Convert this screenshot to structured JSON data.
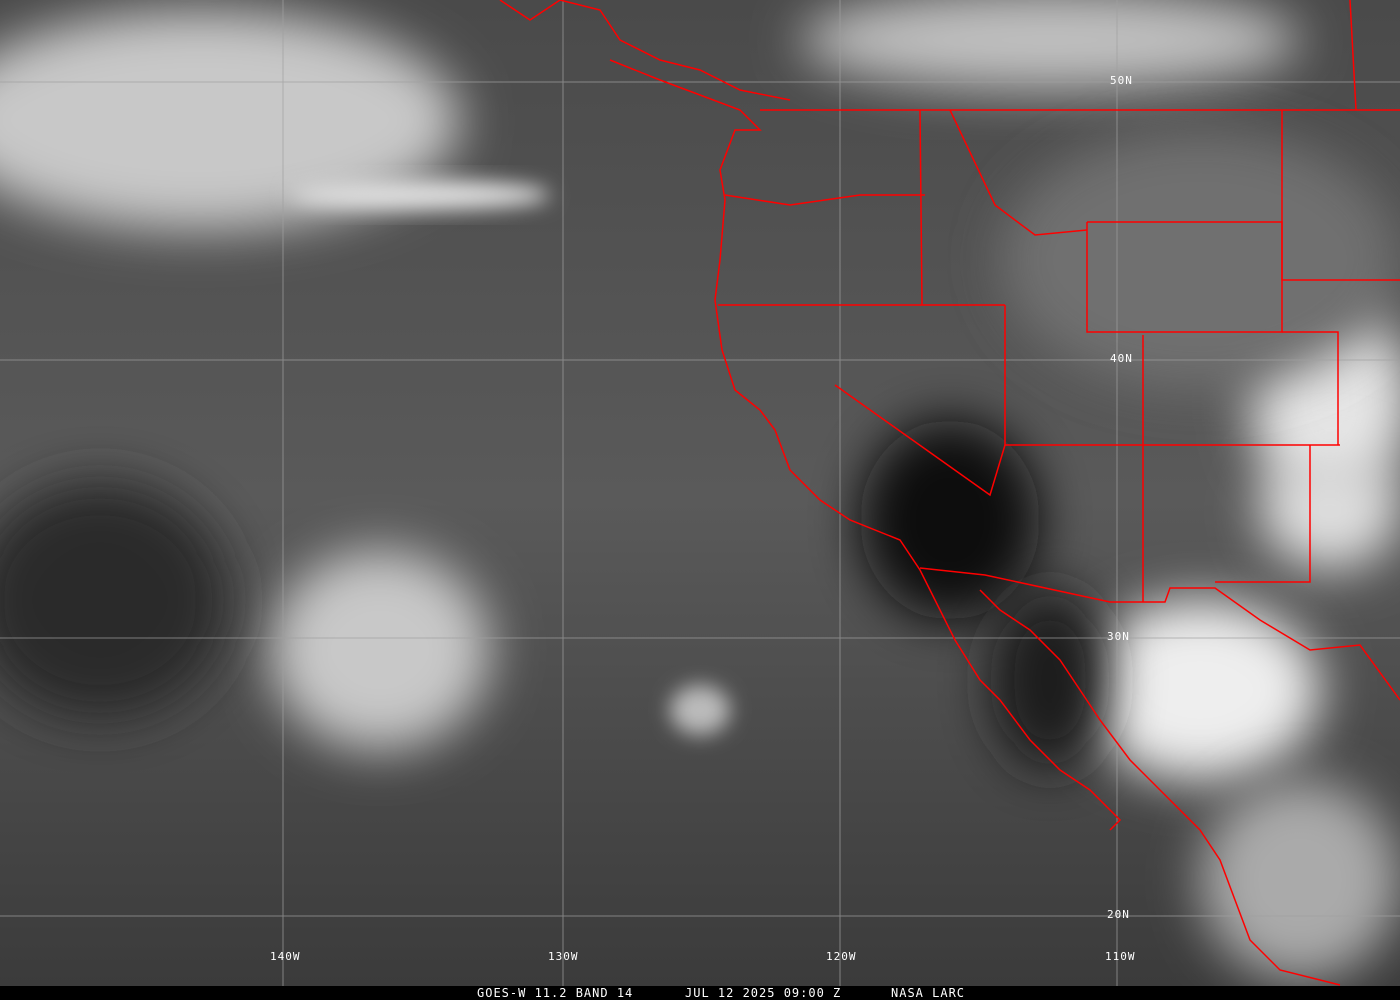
{
  "footer": {
    "satellite": "GOES-W 11.2 BAND 14",
    "datetime": "JUL 12 2025 09:00 Z",
    "credit": "NASA LARC"
  },
  "grid": {
    "lat_labels": [
      "50N",
      "40N",
      "30N",
      "20N"
    ],
    "lon_labels": [
      "140W",
      "130W",
      "120W",
      "110W"
    ]
  },
  "colors": {
    "borders": "#ff0000",
    "grid": "#a0a0a0"
  }
}
